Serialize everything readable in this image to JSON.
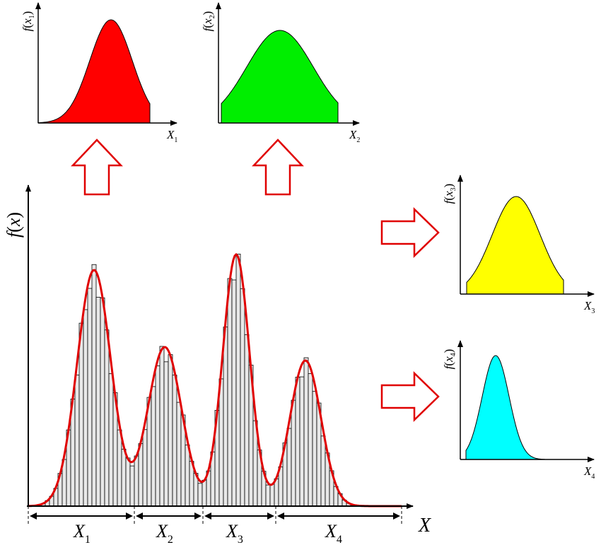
{
  "main_plot": {
    "ylabel_f": "f",
    "ylabel_x": "x",
    "xlabel": "X",
    "segments": [
      {
        "label": "X",
        "sub": "1"
      },
      {
        "label": "X",
        "sub": "2"
      },
      {
        "label": "X",
        "sub": "3"
      },
      {
        "label": "X",
        "sub": "4"
      }
    ],
    "curve_color": "#e00000",
    "bar_fill": "#e8e8e8"
  },
  "subplots": [
    {
      "id": "x1",
      "ylabel_f": "f",
      "ylabel_x": "x",
      "ylabel_sub": "1",
      "xlabel": "X",
      "xlabel_sub": "1",
      "fill": "#ff0000"
    },
    {
      "id": "x2",
      "ylabel_f": "f",
      "ylabel_x": "x",
      "ylabel_sub": "2",
      "xlabel": "X",
      "xlabel_sub": "2",
      "fill": "#00ee00"
    },
    {
      "id": "x3",
      "ylabel_f": "f",
      "ylabel_x": "x",
      "ylabel_sub": "3",
      "xlabel": "X",
      "xlabel_sub": "3",
      "fill": "#ffff00"
    },
    {
      "id": "x4",
      "ylabel_f": "f",
      "ylabel_x": "x",
      "ylabel_sub": "4",
      "xlabel": "X",
      "xlabel_sub": "4",
      "fill": "#00ffff"
    }
  ],
  "arrow_color": "#e00000"
}
